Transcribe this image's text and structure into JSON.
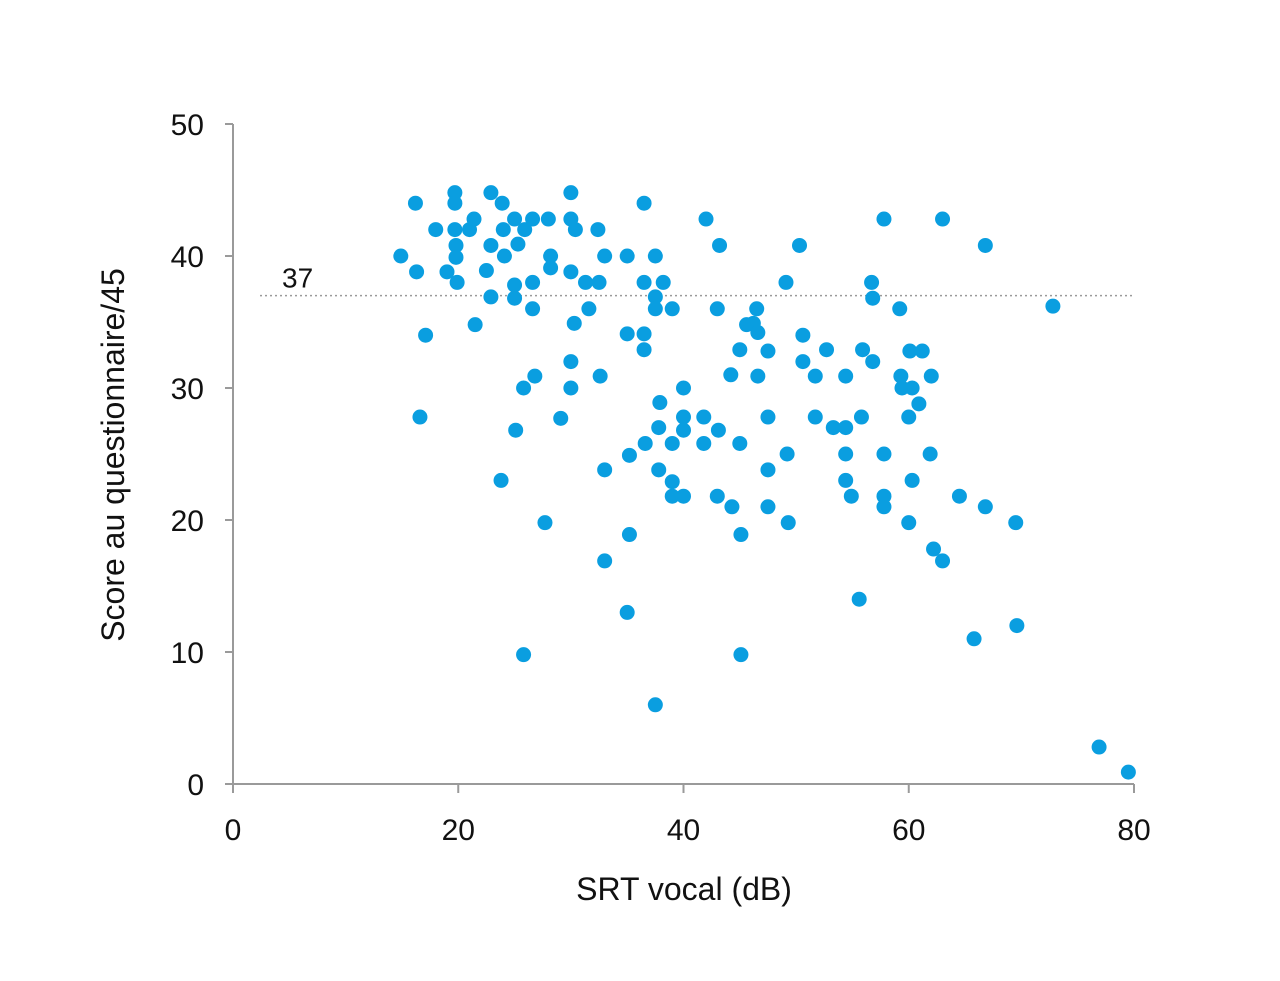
{
  "chart_data": {
    "type": "scatter",
    "xlabel": "SRT vocal (dB)",
    "ylabel": "Score au questionnaire/45",
    "xlim": [
      0,
      80
    ],
    "ylim": [
      0,
      50
    ],
    "x_ticks": [
      "0",
      "20",
      "40",
      "60",
      "80"
    ],
    "y_ticks": [
      "0",
      "10",
      "20",
      "30",
      "40",
      "50"
    ],
    "grid": false,
    "point_color": "#0a9ee0",
    "reference_line": {
      "y": 37,
      "label": "37",
      "style": "dotted"
    },
    "points": [
      [
        14.9,
        40
      ],
      [
        16.2,
        44
      ],
      [
        16.3,
        38.8
      ],
      [
        16.6,
        27.8
      ],
      [
        17.1,
        34
      ],
      [
        18,
        42
      ],
      [
        19,
        38.8
      ],
      [
        19.7,
        44.8
      ],
      [
        19.7,
        44
      ],
      [
        19.7,
        42
      ],
      [
        19.8,
        40.8
      ],
      [
        19.8,
        39.9
      ],
      [
        19.9,
        38
      ],
      [
        21,
        42
      ],
      [
        21.4,
        42.8
      ],
      [
        21.5,
        34.8
      ],
      [
        22.5,
        38.9
      ],
      [
        22.9,
        44.8
      ],
      [
        22.9,
        40.8
      ],
      [
        22.9,
        36.9
      ],
      [
        23.8,
        23
      ],
      [
        23.9,
        44
      ],
      [
        24,
        42
      ],
      [
        24.1,
        40
      ],
      [
        25,
        42.8
      ],
      [
        25,
        37.8
      ],
      [
        25,
        36.8
      ],
      [
        25.1,
        26.8
      ],
      [
        25.3,
        40.9
      ],
      [
        25.8,
        9.8
      ],
      [
        25.8,
        30
      ],
      [
        25.9,
        42
      ],
      [
        26.6,
        42.8
      ],
      [
        26.6,
        38
      ],
      [
        26.6,
        36
      ],
      [
        26.8,
        30.9
      ],
      [
        27.7,
        19.8
      ],
      [
        28,
        42.8
      ],
      [
        28.2,
        40
      ],
      [
        28.2,
        39.1
      ],
      [
        29.1,
        27.7
      ],
      [
        30,
        44.8
      ],
      [
        30,
        42.8
      ],
      [
        30,
        38.8
      ],
      [
        30,
        32
      ],
      [
        30,
        30
      ],
      [
        30.3,
        34.9
      ],
      [
        30.4,
        42
      ],
      [
        31.3,
        38
      ],
      [
        31.6,
        36
      ],
      [
        32.4,
        42
      ],
      [
        32.5,
        38
      ],
      [
        32.6,
        30.9
      ],
      [
        33,
        40
      ],
      [
        33,
        23.8
      ],
      [
        33,
        16.9
      ],
      [
        35,
        40
      ],
      [
        35,
        34.1
      ],
      [
        35,
        13
      ],
      [
        35.2,
        24.9
      ],
      [
        35.2,
        18.9
      ],
      [
        36.5,
        44
      ],
      [
        36.5,
        38
      ],
      [
        36.5,
        34.1
      ],
      [
        36.5,
        32.9
      ],
      [
        36.6,
        25.8
      ],
      [
        37.5,
        40
      ],
      [
        37.5,
        36.9
      ],
      [
        37.5,
        36
      ],
      [
        37.5,
        6
      ],
      [
        37.8,
        27
      ],
      [
        37.8,
        23.8
      ],
      [
        37.9,
        28.9
      ],
      [
        38.2,
        38
      ],
      [
        39,
        36
      ],
      [
        39,
        25.8
      ],
      [
        39,
        21.8
      ],
      [
        39,
        22.9
      ],
      [
        40,
        30
      ],
      [
        40,
        27.8
      ],
      [
        40,
        26.8
      ],
      [
        40,
        21.8
      ],
      [
        41.8,
        27.8
      ],
      [
        41.8,
        25.8
      ],
      [
        42,
        42.8
      ],
      [
        43,
        36
      ],
      [
        43,
        21.8
      ],
      [
        43.1,
        26.8
      ],
      [
        43.2,
        40.8
      ],
      [
        44.2,
        31
      ],
      [
        44.3,
        21
      ],
      [
        45,
        25.8
      ],
      [
        45,
        32.9
      ],
      [
        45.1,
        18.9
      ],
      [
        45.1,
        9.8
      ],
      [
        45.6,
        34.8
      ],
      [
        46.2,
        34.9
      ],
      [
        46.5,
        36
      ],
      [
        46.6,
        34.2
      ],
      [
        46.6,
        30.9
      ],
      [
        47.5,
        32.8
      ],
      [
        47.5,
        27.8
      ],
      [
        47.5,
        23.8
      ],
      [
        47.5,
        21
      ],
      [
        49.1,
        38
      ],
      [
        49.2,
        25
      ],
      [
        49.3,
        19.8
      ],
      [
        50.3,
        40.8
      ],
      [
        50.6,
        34
      ],
      [
        50.6,
        32
      ],
      [
        51.7,
        30.9
      ],
      [
        51.7,
        27.8
      ],
      [
        52.7,
        32.9
      ],
      [
        53.3,
        27
      ],
      [
        54.4,
        30.9
      ],
      [
        54.4,
        27
      ],
      [
        54.4,
        25
      ],
      [
        54.4,
        23
      ],
      [
        54.9,
        21.8
      ],
      [
        55.6,
        14
      ],
      [
        55.8,
        27.8
      ],
      [
        55.9,
        32.9
      ],
      [
        56.7,
        38
      ],
      [
        56.8,
        36.8
      ],
      [
        56.8,
        32
      ],
      [
        57.8,
        42.8
      ],
      [
        57.8,
        25
      ],
      [
        57.8,
        21.8
      ],
      [
        57.8,
        21
      ],
      [
        59.2,
        36
      ],
      [
        59.3,
        30.9
      ],
      [
        59.4,
        30
      ],
      [
        60,
        27.8
      ],
      [
        60,
        19.8
      ],
      [
        60.1,
        32.8
      ],
      [
        60.3,
        30
      ],
      [
        60.3,
        23
      ],
      [
        60.9,
        28.8
      ],
      [
        61.2,
        32.8
      ],
      [
        61.9,
        25
      ],
      [
        62,
        30.9
      ],
      [
        62.2,
        17.8
      ],
      [
        63,
        16.9
      ],
      [
        63,
        42.8
      ],
      [
        64.5,
        21.8
      ],
      [
        65.8,
        11
      ],
      [
        66.8,
        40.8
      ],
      [
        66.8,
        21
      ],
      [
        69.5,
        19.8
      ],
      [
        69.6,
        12
      ],
      [
        72.8,
        36.2
      ],
      [
        76.9,
        2.8
      ],
      [
        79.5,
        0.9
      ]
    ]
  }
}
